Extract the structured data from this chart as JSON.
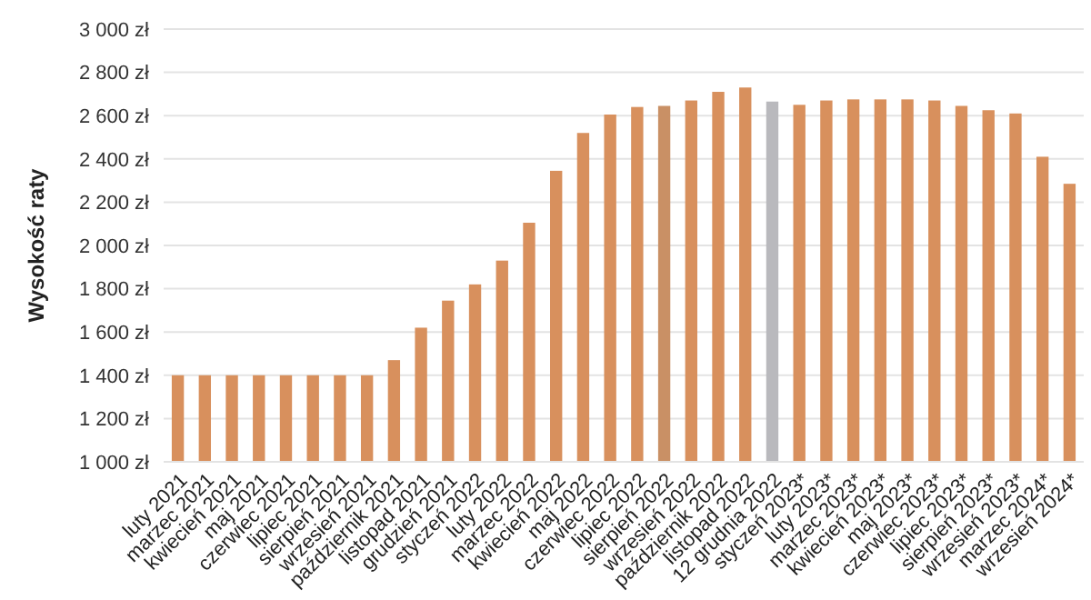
{
  "chart_data": {
    "type": "bar",
    "ylabel": "Wysokość raty",
    "categories": [
      "luty 2021",
      "marzec 2021",
      "kwiecień 2021",
      "maj 2021",
      "czerwiec 2021",
      "lipiec 2021",
      "sierpień 2021",
      "wrzesień 2021",
      "październik 2021",
      "listopad 2021",
      "grudzień 2021",
      "styczeń 2022",
      "luty 2022",
      "marzec 2022",
      "kwiecień 2022",
      "maj 2022",
      "czerwiec 2022",
      "lipiec 2022",
      "sierpień 2022",
      "wrzesień 2022",
      "październik 2022",
      "listopad 2022",
      "12 grudnia 2022",
      "styczeń 2023*",
      "luty 2023*",
      "marzec 2023*",
      "kwiecień 2023*",
      "maj 2023*",
      "czerwiec 2023*",
      "lipiec 2023*",
      "sierpień 2023*",
      "wrzesień 2023*",
      "marzec 2024*",
      "wrzesień 2024*"
    ],
    "values": [
      1400,
      1400,
      1400,
      1400,
      1400,
      1400,
      1400,
      1400,
      1470,
      1620,
      1745,
      1820,
      1930,
      2105,
      2345,
      2520,
      2605,
      2640,
      2645,
      2670,
      2710,
      2730,
      2665,
      2650,
      2670,
      2675,
      2675,
      2675,
      2670,
      2645,
      2625,
      2610,
      2410,
      2285
    ],
    "colors": [
      "#d8905d",
      "#d8905d",
      "#d8905d",
      "#d8905d",
      "#d8905d",
      "#d8905d",
      "#d8905d",
      "#d8905d",
      "#d8905d",
      "#d8905d",
      "#d8905d",
      "#d8905d",
      "#d8905d",
      "#d8905d",
      "#d8905d",
      "#d8905d",
      "#d8905d",
      "#d8905d",
      "#c99065",
      "#d8905d",
      "#d8905d",
      "#d8905d",
      "#b9b9bd",
      "#d8905d",
      "#d8905d",
      "#d8905d",
      "#d8905d",
      "#d8905d",
      "#d8905d",
      "#d8905d",
      "#d8905d",
      "#d8905d",
      "#d8905d",
      "#d8905d"
    ],
    "ylim": [
      1000,
      3000
    ],
    "yticks": [
      {
        "value": 1000,
        "label": "1 000 zł"
      },
      {
        "value": 1200,
        "label": "1 200 zł"
      },
      {
        "value": 1400,
        "label": "1 400 zł"
      },
      {
        "value": 1600,
        "label": "1 600 zł"
      },
      {
        "value": 1800,
        "label": "1 800 zł"
      },
      {
        "value": 2000,
        "label": "2 000 zł"
      },
      {
        "value": 2200,
        "label": "2 200 zł"
      },
      {
        "value": 2400,
        "label": "2 400 zł"
      },
      {
        "value": 2600,
        "label": "2 600 zł"
      },
      {
        "value": 2800,
        "label": "2 800 zł"
      },
      {
        "value": 3000,
        "label": "3 000 zł"
      }
    ],
    "grid": "y"
  }
}
